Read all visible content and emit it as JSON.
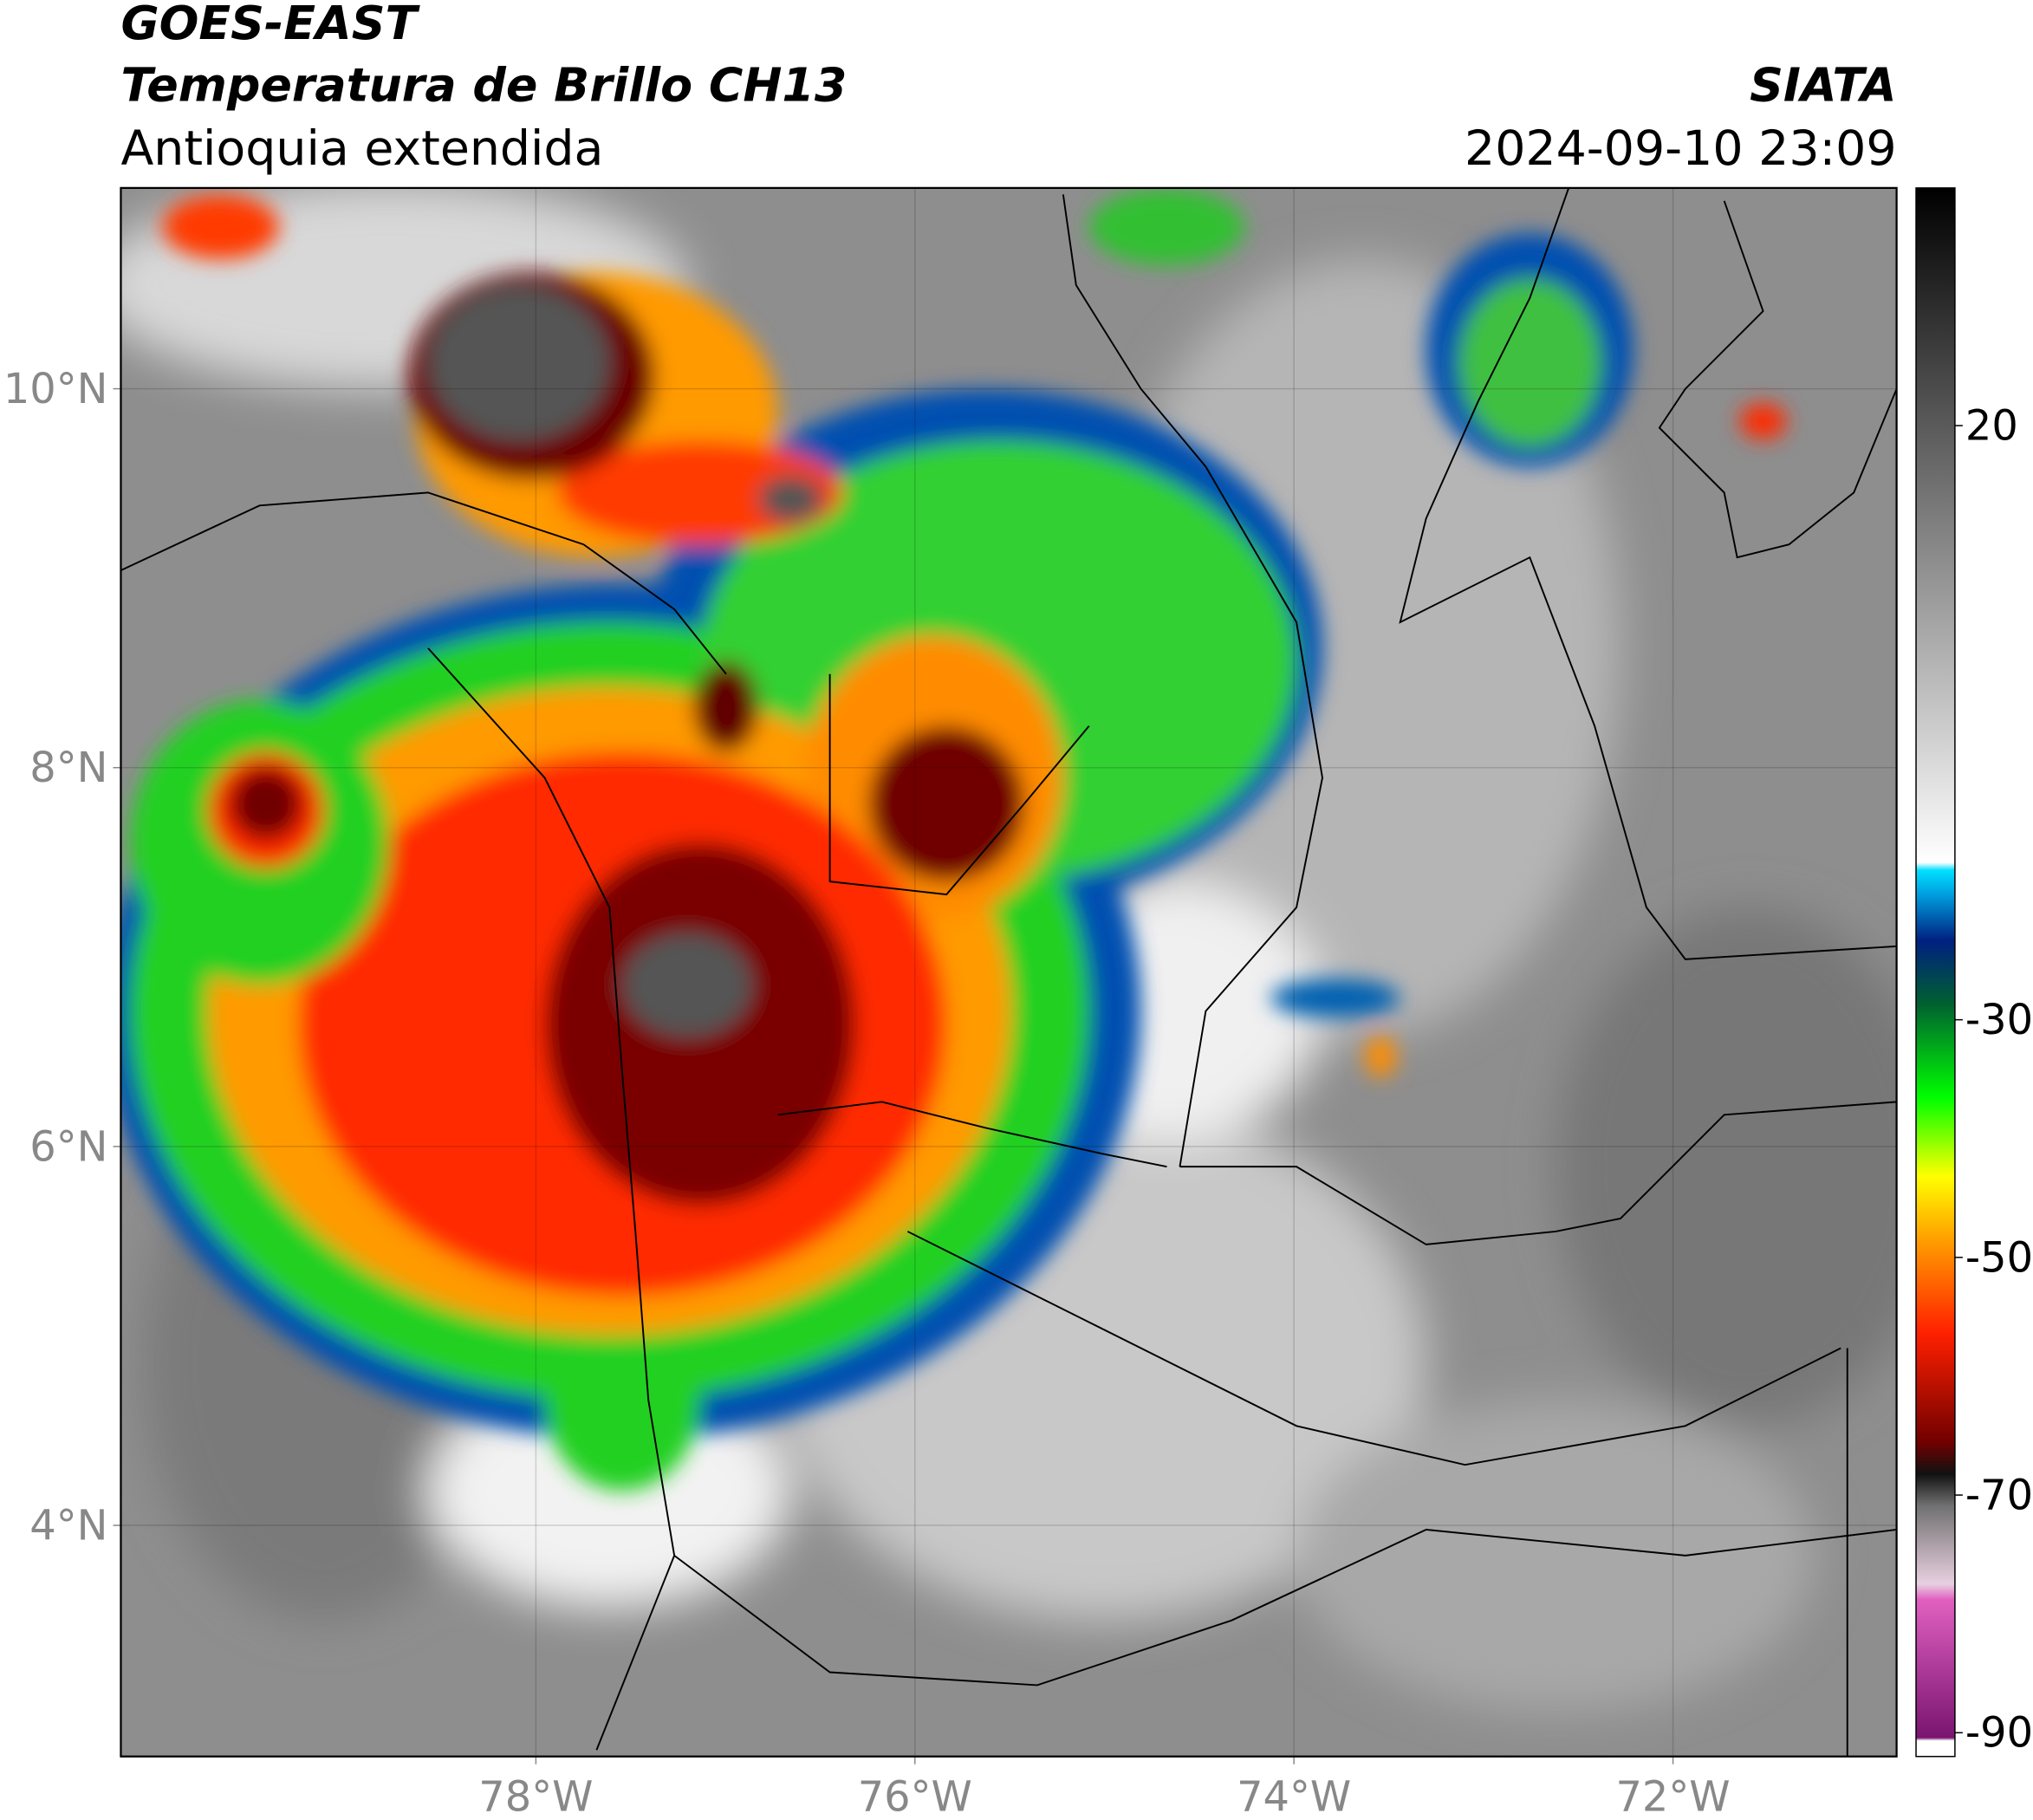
{
  "header": {
    "title": "GOES-EAST",
    "subtitle": "Temperatura de Brillo CH13",
    "region": "Antioquia extendida",
    "source": "SIATA",
    "datetime": "2024-09-10 23:09"
  },
  "map": {
    "xlim": [
      -80.19,
      -70.82
    ],
    "ylim": [
      2.78,
      11.06
    ],
    "xticks": [
      {
        "value": -78,
        "label": "78°W"
      },
      {
        "value": -76,
        "label": "76°W"
      },
      {
        "value": -74,
        "label": "74°W"
      },
      {
        "value": -72,
        "label": "72°W"
      }
    ],
    "yticks": [
      {
        "value": 10,
        "label": "10°N"
      },
      {
        "value": 8,
        "label": "8°N"
      },
      {
        "value": 6,
        "label": "6°N"
      },
      {
        "value": 4,
        "label": "4°N"
      }
    ]
  },
  "colorbar": {
    "lim": [
      -92,
      40
    ],
    "ticks": [
      20,
      -30,
      -50,
      -70,
      -90
    ]
  }
}
